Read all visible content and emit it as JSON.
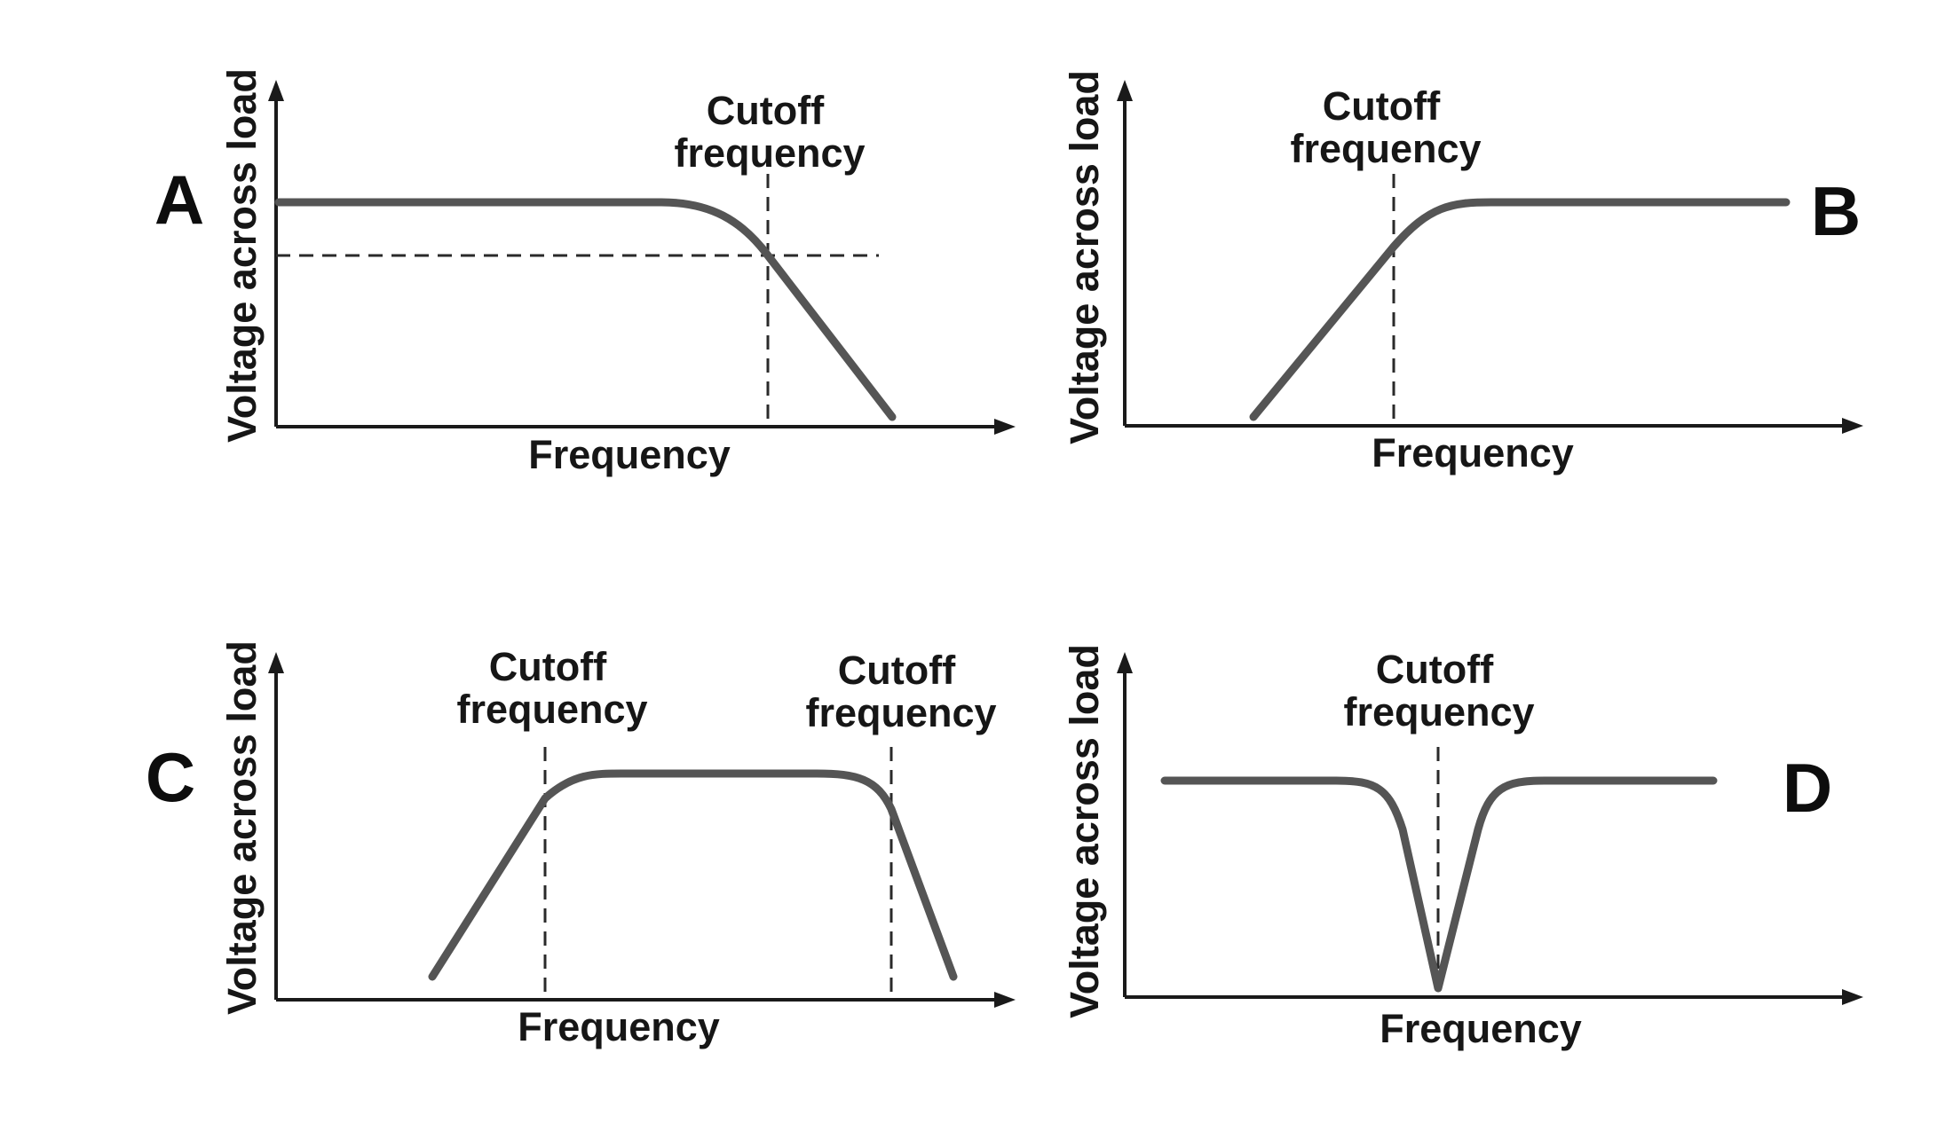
{
  "panels": [
    {
      "id": "A",
      "filter": "low-pass",
      "letter": "A",
      "x_label": "Frequency",
      "y_label": "Voltage across load",
      "cutoff_labels": [
        {
          "line1": "Cutoff",
          "line2": "frequency"
        }
      ]
    },
    {
      "id": "B",
      "filter": "high-pass",
      "letter": "B",
      "x_label": "Frequency",
      "y_label": "Voltage across load",
      "cutoff_labels": [
        {
          "line1": "Cutoff",
          "line2": "frequency"
        }
      ]
    },
    {
      "id": "C",
      "filter": "band-pass",
      "letter": "C",
      "x_label": "Frequency",
      "y_label": "Voltage across load",
      "cutoff_labels": [
        {
          "line1": "Cutoff",
          "line2": "frequency"
        },
        {
          "line1": "Cutoff",
          "line2": "frequency"
        }
      ]
    },
    {
      "id": "D",
      "filter": "band-stop",
      "letter": "D",
      "x_label": "Frequency",
      "y_label": "Voltage across load",
      "cutoff_labels": [
        {
          "line1": "Cutoff",
          "line2": "frequency"
        }
      ]
    }
  ],
  "colors": {
    "curve": "#555555",
    "axis": "#1a1a1a",
    "text": "#161616",
    "background": "#ffffff"
  }
}
